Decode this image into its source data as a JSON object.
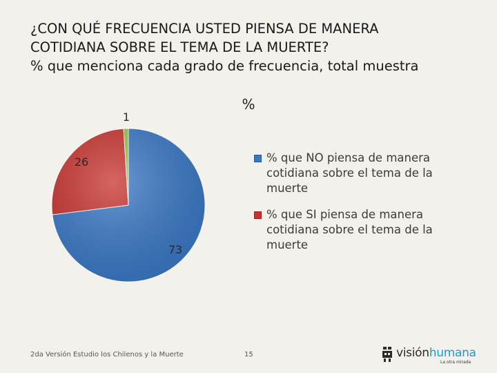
{
  "title": {
    "line1": "¿CON QUÉ FRECUENCIA USTED PIENSA DE MANERA",
    "line2": "COTIDIANA SOBRE EL TEMA DE LA MUERTE?",
    "line3": "% que menciona cada grado de frecuencia, total muestra"
  },
  "chart_data": {
    "type": "pie",
    "title": "%",
    "slices": [
      {
        "label": "% que NO piensa de manera cotidiana sobre el tema de la muerte",
        "value": 73,
        "color": "#3a78c6"
      },
      {
        "label": "% que SI piensa de manera cotidiana sobre el tema de la muerte",
        "value": 26,
        "color": "#c8332f"
      },
      {
        "label": "",
        "value": 1,
        "color": "#9bc441"
      }
    ],
    "data_labels": [
      "73",
      "26",
      "1"
    ],
    "legend_position": "right"
  },
  "footer": {
    "source": "2da Versión Estudio los Chilenos y la Muerte",
    "page_number": "15"
  },
  "logo": {
    "part1": "visión",
    "part2": "humana",
    "tagline": "La otra mirada",
    "color_dark": "#2a2a2a",
    "color_accent": "#1d9bd1"
  }
}
